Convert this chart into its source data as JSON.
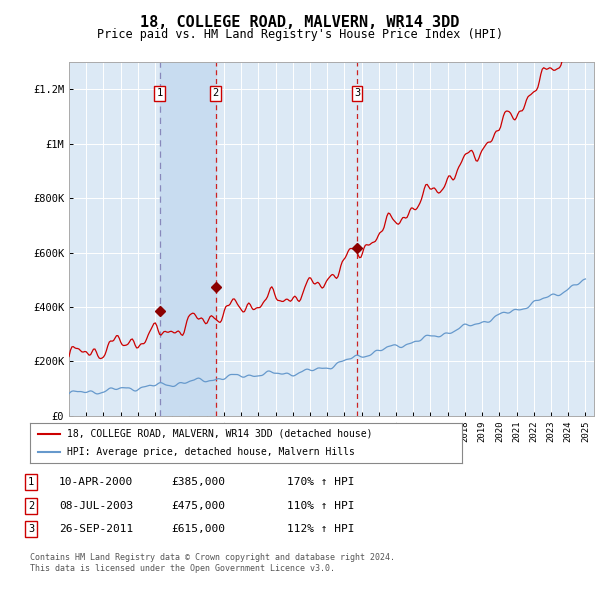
{
  "title": "18, COLLEGE ROAD, MALVERN, WR14 3DD",
  "subtitle": "Price paid vs. HM Land Registry's House Price Index (HPI)",
  "title_fontsize": 11,
  "subtitle_fontsize": 8.5,
  "background_color": "#ffffff",
  "plot_bg_color": "#dce9f5",
  "grid_color": "#ffffff",
  "ylim": [
    0,
    1300000
  ],
  "yticks": [
    0,
    200000,
    400000,
    600000,
    800000,
    1000000,
    1200000
  ],
  "ytick_labels": [
    "£0",
    "£200K",
    "£400K",
    "£600K",
    "£800K",
    "£1M",
    "£1.2M"
  ],
  "sale_dates": [
    2000.27,
    2003.52,
    2011.73
  ],
  "sale_prices": [
    385000,
    475000,
    615000
  ],
  "shade_regions": [
    [
      2000.27,
      2003.52
    ]
  ],
  "shade_color": "#c8dcf0",
  "legend_line1": "18, COLLEGE ROAD, MALVERN, WR14 3DD (detached house)",
  "legend_line2": "HPI: Average price, detached house, Malvern Hills",
  "legend_line1_color": "#cc0000",
  "legend_line2_color": "#6699cc",
  "table_data": [
    [
      "1",
      "10-APR-2000",
      "£385,000",
      "170% ↑ HPI"
    ],
    [
      "2",
      "08-JUL-2003",
      "£475,000",
      "110% ↑ HPI"
    ],
    [
      "3",
      "26-SEP-2011",
      "£615,000",
      "112% ↑ HPI"
    ]
  ],
  "footnote": "Contains HM Land Registry data © Crown copyright and database right 2024.\nThis data is licensed under the Open Government Licence v3.0.",
  "hpi_line_color": "#6699cc",
  "price_line_color": "#cc0000",
  "marker_color": "#8b0000"
}
